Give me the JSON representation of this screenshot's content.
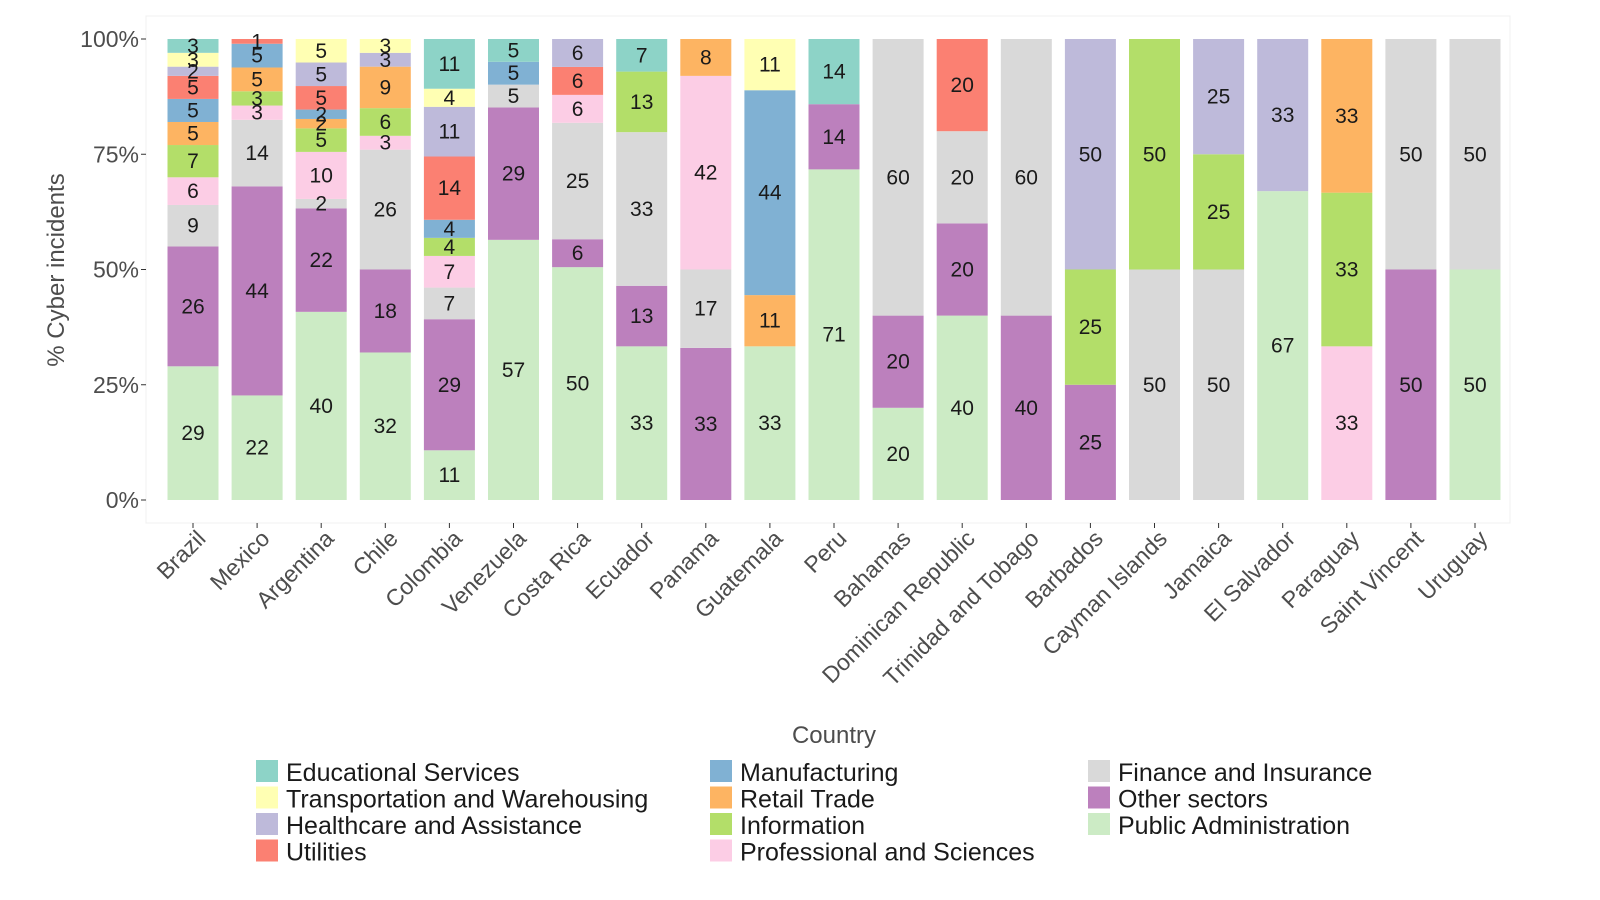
{
  "chart_data": {
    "type": "bar",
    "stacked": true,
    "title": "",
    "xlabel": "Country",
    "ylabel": "% Cyber incidents",
    "ylim": [
      0,
      100
    ],
    "yticks": [
      "0%",
      "25%",
      "50%",
      "75%",
      "100%"
    ],
    "yticks_values": [
      0,
      25,
      50,
      75,
      100
    ],
    "grid": false,
    "legend_position": "bottom",
    "categories": [
      "Brazil",
      "Mexico",
      "Argentina",
      "Chile",
      "Colombia",
      "Venezuela",
      "Costa Rica",
      "Ecuador",
      "Panama",
      "Guatemala",
      "Peru",
      "Bahamas",
      "Dominican Republic",
      "Trinidad and Tobago",
      "Barbados",
      "Cayman Islands",
      "Jamaica",
      "El Salvador",
      "Paraguay",
      "Saint Vincent",
      "Uruguay"
    ],
    "stack_order_bottom_to_top": [
      "Public Administration",
      "Other sectors",
      "Finance and Insurance",
      "Professional and Sciences",
      "Information",
      "Retail Trade",
      "Manufacturing",
      "Utilities",
      "Healthcare and Assistance",
      "Transportation and Warehousing",
      "Educational Services"
    ],
    "series": [
      {
        "name": "Public Administration",
        "color": "#ccebc5",
        "values": [
          29,
          22,
          40,
          32,
          11,
          57,
          50,
          33,
          0,
          33,
          71,
          20,
          40,
          0,
          0,
          0,
          0,
          67,
          0,
          0,
          50
        ]
      },
      {
        "name": "Other sectors",
        "color": "#bc80bd",
        "values": [
          26,
          44,
          22,
          18,
          29,
          29,
          6,
          13,
          33,
          0,
          14,
          20,
          20,
          40,
          25,
          0,
          0,
          0,
          0,
          50,
          0
        ]
      },
      {
        "name": "Finance and Insurance",
        "color": "#d9d9d9",
        "values": [
          9,
          14,
          2,
          26,
          7,
          5,
          25,
          33,
          17,
          0,
          0,
          60,
          20,
          60,
          0,
          50,
          50,
          0,
          0,
          50,
          50
        ]
      },
      {
        "name": "Professional and Sciences",
        "color": "#fccde5",
        "values": [
          6,
          3,
          10,
          3,
          7,
          0,
          6,
          0,
          42,
          0,
          0,
          0,
          0,
          0,
          0,
          0,
          0,
          0,
          33,
          0,
          0
        ]
      },
      {
        "name": "Information",
        "color": "#b3de69",
        "values": [
          7,
          3,
          5,
          6,
          4,
          0,
          0,
          13,
          0,
          0,
          0,
          0,
          0,
          0,
          25,
          50,
          25,
          0,
          33,
          0,
          0
        ]
      },
      {
        "name": "Retail Trade",
        "color": "#fdb462",
        "values": [
          5,
          5,
          2,
          9,
          0,
          0,
          0,
          0,
          8,
          11,
          0,
          0,
          0,
          0,
          0,
          0,
          0,
          0,
          33,
          0,
          0
        ]
      },
      {
        "name": "Manufacturing",
        "color": "#80b1d3",
        "values": [
          5,
          5,
          2,
          0,
          4,
          5,
          0,
          0,
          0,
          44,
          0,
          0,
          0,
          0,
          0,
          0,
          0,
          0,
          0,
          0,
          0
        ]
      },
      {
        "name": "Utilities",
        "color": "#fb8072",
        "values": [
          5,
          1,
          5,
          0,
          14,
          0,
          6,
          0,
          0,
          0,
          0,
          0,
          20,
          0,
          0,
          0,
          0,
          0,
          0,
          0,
          0
        ]
      },
      {
        "name": "Healthcare and Assistance",
        "color": "#bebada",
        "values": [
          2,
          0,
          5,
          3,
          11,
          0,
          6,
          0,
          0,
          0,
          0,
          0,
          0,
          0,
          50,
          0,
          25,
          33,
          0,
          0,
          0
        ]
      },
      {
        "name": "Transportation and Warehousing",
        "color": "#ffffb3",
        "values": [
          3,
          0,
          5,
          3,
          4,
          0,
          0,
          0,
          0,
          11,
          0,
          0,
          0,
          0,
          0,
          0,
          0,
          0,
          0,
          0,
          0
        ]
      },
      {
        "name": "Educational Services",
        "color": "#8dd3c7",
        "values": [
          3,
          0,
          0,
          0,
          11,
          5,
          0,
          7,
          0,
          0,
          14,
          0,
          0,
          0,
          0,
          0,
          0,
          0,
          0,
          0,
          0
        ]
      }
    ],
    "segment_labels": [
      [
        "29",
        "26",
        "9",
        "6",
        "7",
        "5",
        "5",
        "5",
        "2",
        "3",
        "3"
      ],
      [
        "22",
        "44",
        "14",
        "3",
        "3",
        "5",
        "5",
        "1",
        "",
        "",
        ""
      ],
      [
        "40",
        "22",
        "2",
        "10",
        "5",
        "2",
        "2",
        "5",
        "5",
        "5",
        ""
      ],
      [
        "32",
        "18",
        "26",
        "3",
        "6",
        "9",
        "",
        "",
        "3",
        "3",
        ""
      ],
      [
        "11",
        "29",
        "7",
        "7",
        "4",
        "",
        "4",
        "14",
        "11",
        "4",
        "11"
      ],
      [
        "57",
        "29",
        "5",
        "",
        "",
        "",
        "5",
        "",
        "",
        "",
        "5"
      ],
      [
        "50",
        "6",
        "25",
        "6",
        "",
        "",
        "",
        "6",
        "6",
        "",
        ""
      ],
      [
        "33",
        "13",
        "33",
        "",
        "13",
        "",
        "",
        "",
        "",
        "",
        "7"
      ],
      [
        "",
        "33",
        "17",
        "42",
        "",
        "8",
        "",
        "",
        "",
        "",
        ""
      ],
      [
        "33",
        "",
        "",
        "",
        "",
        "11",
        "44",
        "",
        "",
        "11",
        ""
      ],
      [
        "71",
        "14",
        "",
        "",
        "",
        "",
        "",
        "",
        "",
        "",
        "14"
      ],
      [
        "20",
        "20",
        "60",
        "",
        "",
        "",
        "",
        "",
        "",
        "",
        ""
      ],
      [
        "40",
        "20",
        "20",
        "",
        "",
        "",
        "",
        "20",
        "",
        "",
        ""
      ],
      [
        "",
        "40",
        "60",
        "",
        "",
        "",
        "",
        "",
        "",
        "",
        ""
      ],
      [
        "",
        "25",
        "",
        "",
        "25",
        "",
        "",
        "",
        "50",
        "",
        ""
      ],
      [
        "",
        "",
        "50",
        "",
        "50",
        "",
        "",
        "",
        "",
        "",
        ""
      ],
      [
        "",
        "",
        "50",
        "",
        "25",
        "",
        "",
        "",
        "25",
        "",
        ""
      ],
      [
        "67",
        "",
        "",
        "",
        "",
        "",
        "",
        "",
        "33",
        "",
        ""
      ],
      [
        "",
        "",
        "",
        "33",
        "33",
        "33",
        "",
        "",
        "",
        "",
        ""
      ],
      [
        "",
        "50",
        "50",
        "",
        "",
        "",
        "",
        "",
        "",
        "",
        ""
      ],
      [
        "50",
        "",
        "50",
        "",
        "",
        "",
        "",
        "",
        "",
        "",
        ""
      ]
    ],
    "legend": {
      "columns": [
        [
          "Educational Services",
          "Transportation and Warehousing",
          "Healthcare and Assistance",
          "Utilities"
        ],
        [
          "Manufacturing",
          "Retail Trade",
          "Information",
          "Professional and Sciences"
        ],
        [
          "Finance and Insurance",
          "Other sectors",
          "Public Administration"
        ]
      ]
    }
  }
}
